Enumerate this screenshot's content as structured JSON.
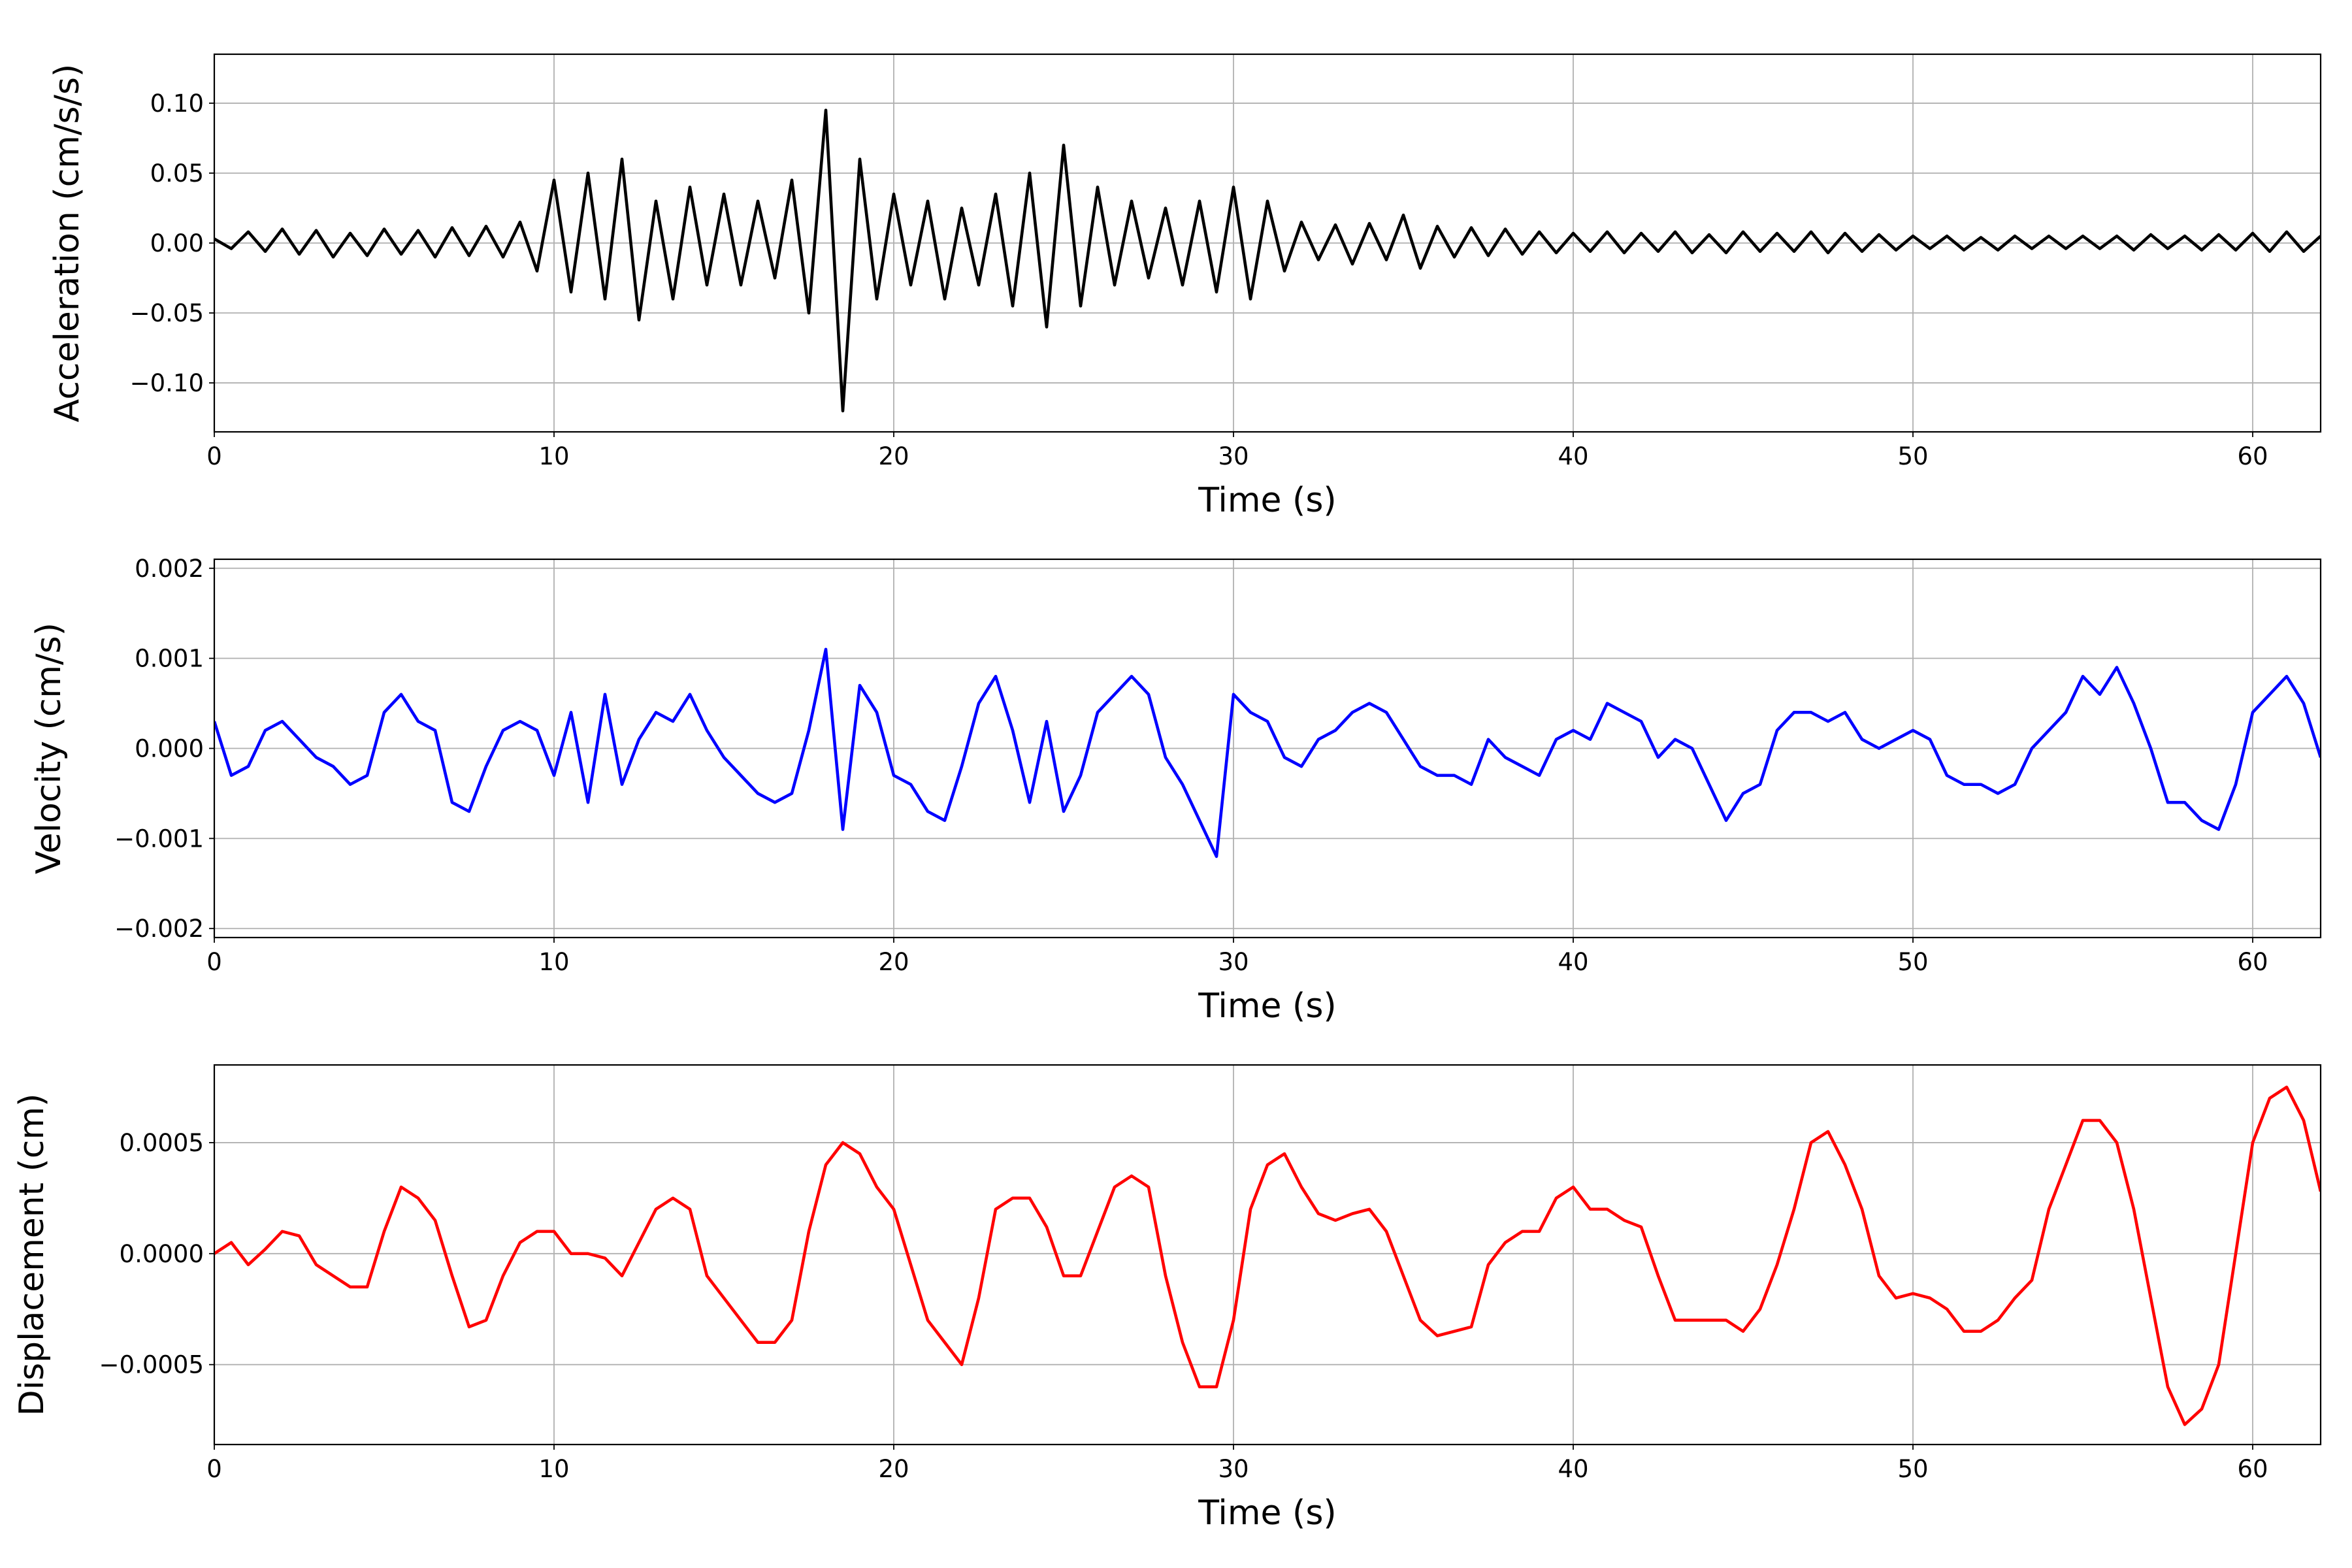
{
  "chart_data": [
    {
      "type": "line",
      "color": "#000000",
      "xlabel": "Time (s)",
      "ylabel": "Acceleration (cm/s/s)",
      "xlim": [
        0,
        62
      ],
      "xticks": [
        0,
        10,
        20,
        30,
        40,
        50,
        60
      ],
      "ylim": [
        -0.135,
        0.135
      ],
      "yticks": [
        {
          "value": -0.1,
          "label": "−0.10"
        },
        {
          "value": -0.05,
          "label": "−0.05"
        },
        {
          "value": 0,
          "label": "0.00"
        },
        0.05,
        {
          "value": 0.1,
          "label": "0.10"
        }
      ],
      "grid": true,
      "x": [
        0,
        0.5,
        1,
        1.5,
        2,
        2.5,
        3,
        3.5,
        4,
        4.5,
        5,
        5.5,
        6,
        6.5,
        7,
        7.5,
        8,
        8.5,
        9,
        9.5,
        10,
        10.5,
        11,
        11.5,
        12,
        12.5,
        13,
        13.5,
        14,
        14.5,
        15,
        15.5,
        16,
        16.5,
        17,
        17.5,
        18,
        18.5,
        19,
        19.5,
        20,
        20.5,
        21,
        21.5,
        22,
        22.5,
        23,
        23.5,
        24,
        24.5,
        25,
        25.5,
        26,
        26.5,
        27,
        27.5,
        28,
        28.5,
        29,
        29.5,
        30,
        30.5,
        31,
        31.5,
        32,
        32.5,
        33,
        33.5,
        34,
        34.5,
        35,
        35.5,
        36,
        36.5,
        37,
        37.5,
        38,
        38.5,
        39,
        39.5,
        40,
        40.5,
        41,
        41.5,
        42,
        42.5,
        43,
        43.5,
        44,
        44.5,
        45,
        45.5,
        46,
        46.5,
        47,
        47.5,
        48,
        48.5,
        49,
        49.5,
        50,
        50.5,
        51,
        51.5,
        52,
        52.5,
        53,
        53.5,
        54,
        54.5,
        55,
        55.5,
        56,
        56.5,
        57,
        57.5,
        58,
        58.5,
        59,
        59.5,
        60,
        60.5,
        61,
        61.5,
        62
      ],
      "values": [
        0.003,
        -0.004,
        0.008,
        -0.006,
        0.01,
        -0.008,
        0.009,
        -0.01,
        0.007,
        -0.009,
        0.01,
        -0.008,
        0.009,
        -0.01,
        0.011,
        -0.009,
        0.012,
        -0.01,
        0.015,
        -0.02,
        0.045,
        -0.035,
        0.05,
        -0.04,
        0.06,
        -0.055,
        0.03,
        -0.04,
        0.04,
        -0.03,
        0.035,
        -0.03,
        0.03,
        -0.025,
        0.045,
        -0.05,
        0.095,
        -0.12,
        0.06,
        -0.04,
        0.035,
        -0.03,
        0.03,
        -0.04,
        0.025,
        -0.03,
        0.035,
        -0.045,
        0.05,
        -0.06,
        0.07,
        -0.045,
        0.04,
        -0.03,
        0.03,
        -0.025,
        0.025,
        -0.03,
        0.03,
        -0.035,
        0.04,
        -0.04,
        0.03,
        -0.02,
        0.015,
        -0.012,
        0.013,
        -0.015,
        0.014,
        -0.012,
        0.02,
        -0.018,
        0.012,
        -0.01,
        0.011,
        -0.009,
        0.01,
        -0.008,
        0.008,
        -0.007,
        0.007,
        -0.006,
        0.008,
        -0.007,
        0.007,
        -0.006,
        0.008,
        -0.007,
        0.006,
        -0.007,
        0.008,
        -0.006,
        0.007,
        -0.006,
        0.008,
        -0.007,
        0.007,
        -0.006,
        0.006,
        -0.005,
        0.005,
        -0.004,
        0.005,
        -0.005,
        0.004,
        -0.005,
        0.005,
        -0.004,
        0.005,
        -0.004,
        0.005,
        -0.004,
        0.005,
        -0.005,
        0.006,
        -0.004,
        0.005,
        -0.005,
        0.006,
        -0.005,
        0.007,
        -0.006,
        0.008,
        -0.006,
        0.005
      ]
    },
    {
      "type": "line",
      "color": "#0000ff",
      "xlabel": "Time (s)",
      "ylabel": "Velocity (cm/s)",
      "xlim": [
        0,
        62
      ],
      "xticks": [
        0,
        10,
        20,
        30,
        40,
        50,
        60
      ],
      "ylim": [
        -0.0021,
        0.0021
      ],
      "yticks": [
        {
          "value": -0.002,
          "label": "−0.002"
        },
        {
          "value": -0.001,
          "label": "−0.001"
        },
        {
          "value": 0,
          "label": "0.000"
        },
        0.001,
        0.002
      ],
      "grid": true,
      "x": [
        0,
        0.5,
        1,
        1.5,
        2,
        2.5,
        3,
        3.5,
        4,
        4.5,
        5,
        5.5,
        6,
        6.5,
        7,
        7.5,
        8,
        8.5,
        9,
        9.5,
        10,
        10.5,
        11,
        11.5,
        12,
        12.5,
        13,
        13.5,
        14,
        14.5,
        15,
        15.5,
        16,
        16.5,
        17,
        17.5,
        18,
        18.5,
        19,
        19.5,
        20,
        20.5,
        21,
        21.5,
        22,
        22.5,
        23,
        23.5,
        24,
        24.5,
        25,
        25.5,
        26,
        26.5,
        27,
        27.5,
        28,
        28.5,
        29,
        29.5,
        30,
        30.5,
        31,
        31.5,
        32,
        32.5,
        33,
        33.5,
        34,
        34.5,
        35,
        35.5,
        36,
        36.5,
        37,
        37.5,
        38,
        38.5,
        39,
        39.5,
        40,
        40.5,
        41,
        41.5,
        42,
        42.5,
        43,
        43.5,
        44,
        44.5,
        45,
        45.5,
        46,
        46.5,
        47,
        47.5,
        48,
        48.5,
        49,
        49.5,
        50,
        50.5,
        51,
        51.5,
        52,
        52.5,
        53,
        53.5,
        54,
        54.5,
        55,
        55.5,
        56,
        56.5,
        57,
        57.5,
        58,
        58.5,
        59,
        59.5,
        60,
        60.5,
        61,
        61.5,
        62
      ],
      "values": [
        0.0003,
        -0.0003,
        -0.0002,
        0.0002,
        0.0003,
        0.0001,
        -0.0001,
        -0.0002,
        -0.0004,
        -0.0003,
        0.0004,
        0.0006,
        0.0003,
        0.0002,
        -0.0006,
        -0.0007,
        -0.0002,
        0.0002,
        0.0003,
        0.0002,
        -0.0003,
        0.0004,
        -0.0006,
        0.0006,
        -0.0004,
        0.0001,
        0.0004,
        0.0003,
        0.0006,
        0.0002,
        -0.0001,
        -0.0003,
        -0.0005,
        -0.0006,
        -0.0005,
        0.0002,
        0.0011,
        -0.0009,
        0.0007,
        0.0004,
        -0.0003,
        -0.0004,
        -0.0007,
        -0.0008,
        -0.0002,
        0.0005,
        0.0008,
        0.0002,
        -0.0006,
        0.0003,
        -0.0007,
        -0.0003,
        0.0004,
        0.0006,
        0.0008,
        0.0006,
        -0.0001,
        -0.0004,
        -0.0008,
        -0.0012,
        0.0006,
        0.0004,
        0.0003,
        -0.0001,
        -0.0002,
        0.0001,
        0.0002,
        0.0004,
        0.0005,
        0.0004,
        0.0001,
        -0.0002,
        -0.0003,
        -0.0003,
        -0.0004,
        0.0001,
        -0.0001,
        -0.0002,
        -0.0003,
        0.0001,
        0.0002,
        0.0001,
        0.0005,
        0.0004,
        0.0003,
        -0.0001,
        0.0001,
        0,
        -0.0004,
        -0.0008,
        -0.0005,
        -0.0004,
        0.0002,
        0.0004,
        0.0004,
        0.0003,
        0.0004,
        0.0001,
        0,
        0.0001,
        0.0002,
        0.0001,
        -0.0003,
        -0.0004,
        -0.0004,
        -0.0005,
        -0.0004,
        0,
        0.0002,
        0.0004,
        0.0008,
        0.0006,
        0.0009,
        0.0005,
        0,
        -0.0006,
        -0.0006,
        -0.0008,
        -0.0009,
        -0.0004,
        0.0004,
        0.0006,
        0.0008,
        0.0005,
        -0.0001
      ]
    },
    {
      "type": "line",
      "color": "#ff0000",
      "xlabel": "Time (s)",
      "ylabel": "Displacement (cm)",
      "xlim": [
        0,
        62
      ],
      "xticks": [
        0,
        10,
        20,
        30,
        40,
        50,
        60
      ],
      "ylim": [
        -0.00086,
        0.00085
      ],
      "yticks": [
        {
          "value": -0.0005,
          "label": "−0.0005"
        },
        {
          "value": 0,
          "label": "0.0000"
        },
        0.0005
      ],
      "grid": true,
      "x": [
        0,
        0.5,
        1,
        1.5,
        2,
        2.5,
        3,
        3.5,
        4,
        4.5,
        5,
        5.5,
        6,
        6.5,
        7,
        7.5,
        8,
        8.5,
        9,
        9.5,
        10,
        10.5,
        11,
        11.5,
        12,
        12.5,
        13,
        13.5,
        14,
        14.5,
        15,
        15.5,
        16,
        16.5,
        17,
        17.5,
        18,
        18.5,
        19,
        19.5,
        20,
        20.5,
        21,
        21.5,
        22,
        22.5,
        23,
        23.5,
        24,
        24.5,
        25,
        25.5,
        26,
        26.5,
        27,
        27.5,
        28,
        28.5,
        29,
        29.5,
        30,
        30.5,
        31,
        31.5,
        32,
        32.5,
        33,
        33.5,
        34,
        34.5,
        35,
        35.5,
        36,
        36.5,
        37,
        37.5,
        38,
        38.5,
        39,
        39.5,
        40,
        40.5,
        41,
        41.5,
        42,
        42.5,
        43,
        43.5,
        44,
        44.5,
        45,
        45.5,
        46,
        46.5,
        47,
        47.5,
        48,
        48.5,
        49,
        49.5,
        50,
        50.5,
        51,
        51.5,
        52,
        52.5,
        53,
        53.5,
        54,
        54.5,
        55,
        55.5,
        56,
        56.5,
        57,
        57.5,
        58,
        58.5,
        59,
        59.5,
        60,
        60.5,
        61,
        61.5,
        62
      ],
      "values": [
        0,
        5e-05,
        -5e-05,
        2e-05,
        0.0001,
        8e-05,
        -5e-05,
        -0.0001,
        -0.00015,
        -0.00015,
        0.0001,
        0.0003,
        0.00025,
        0.00015,
        -0.0001,
        -0.00033,
        -0.0003,
        -0.0001,
        5e-05,
        0.0001,
        0.0001,
        0,
        0,
        -2e-05,
        -0.0001,
        5e-05,
        0.0002,
        0.00025,
        0.0002,
        -0.0001,
        -0.0002,
        -0.0003,
        -0.0004,
        -0.0004,
        -0.0003,
        0.0001,
        0.0004,
        0.0005,
        0.00045,
        0.0003,
        0.0002,
        -5e-05,
        -0.0003,
        -0.0004,
        -0.0005,
        -0.0002,
        0.0002,
        0.00025,
        0.00025,
        0.00012,
        -0.0001,
        -0.0001,
        0.0001,
        0.0003,
        0.00035,
        0.0003,
        -0.0001,
        -0.0004,
        -0.0006,
        -0.0006,
        -0.0003,
        0.0002,
        0.0004,
        0.00045,
        0.0003,
        0.00018,
        0.00015,
        0.00018,
        0.0002,
        0.0001,
        -0.0001,
        -0.0003,
        -0.00037,
        -0.00035,
        -0.00033,
        -5e-05,
        5e-05,
        0.0001,
        0.0001,
        0.00025,
        0.0003,
        0.0002,
        0.0002,
        0.00015,
        0.00012,
        -0.0001,
        -0.0003,
        -0.0003,
        -0.0003,
        -0.0003,
        -0.00035,
        -0.00025,
        -5e-05,
        0.0002,
        0.0005,
        0.00055,
        0.0004,
        0.0002,
        -0.0001,
        -0.0002,
        -0.00018,
        -0.0002,
        -0.00025,
        -0.00035,
        -0.00035,
        -0.0003,
        -0.0002,
        -0.00012,
        0.0002,
        0.0004,
        0.0006,
        0.0006,
        0.0005,
        0.0002,
        -0.0002,
        -0.0006,
        -0.00077,
        -0.0007,
        -0.0005,
        0,
        0.0005,
        0.0007,
        0.00075,
        0.0006,
        0.00028
      ]
    }
  ]
}
